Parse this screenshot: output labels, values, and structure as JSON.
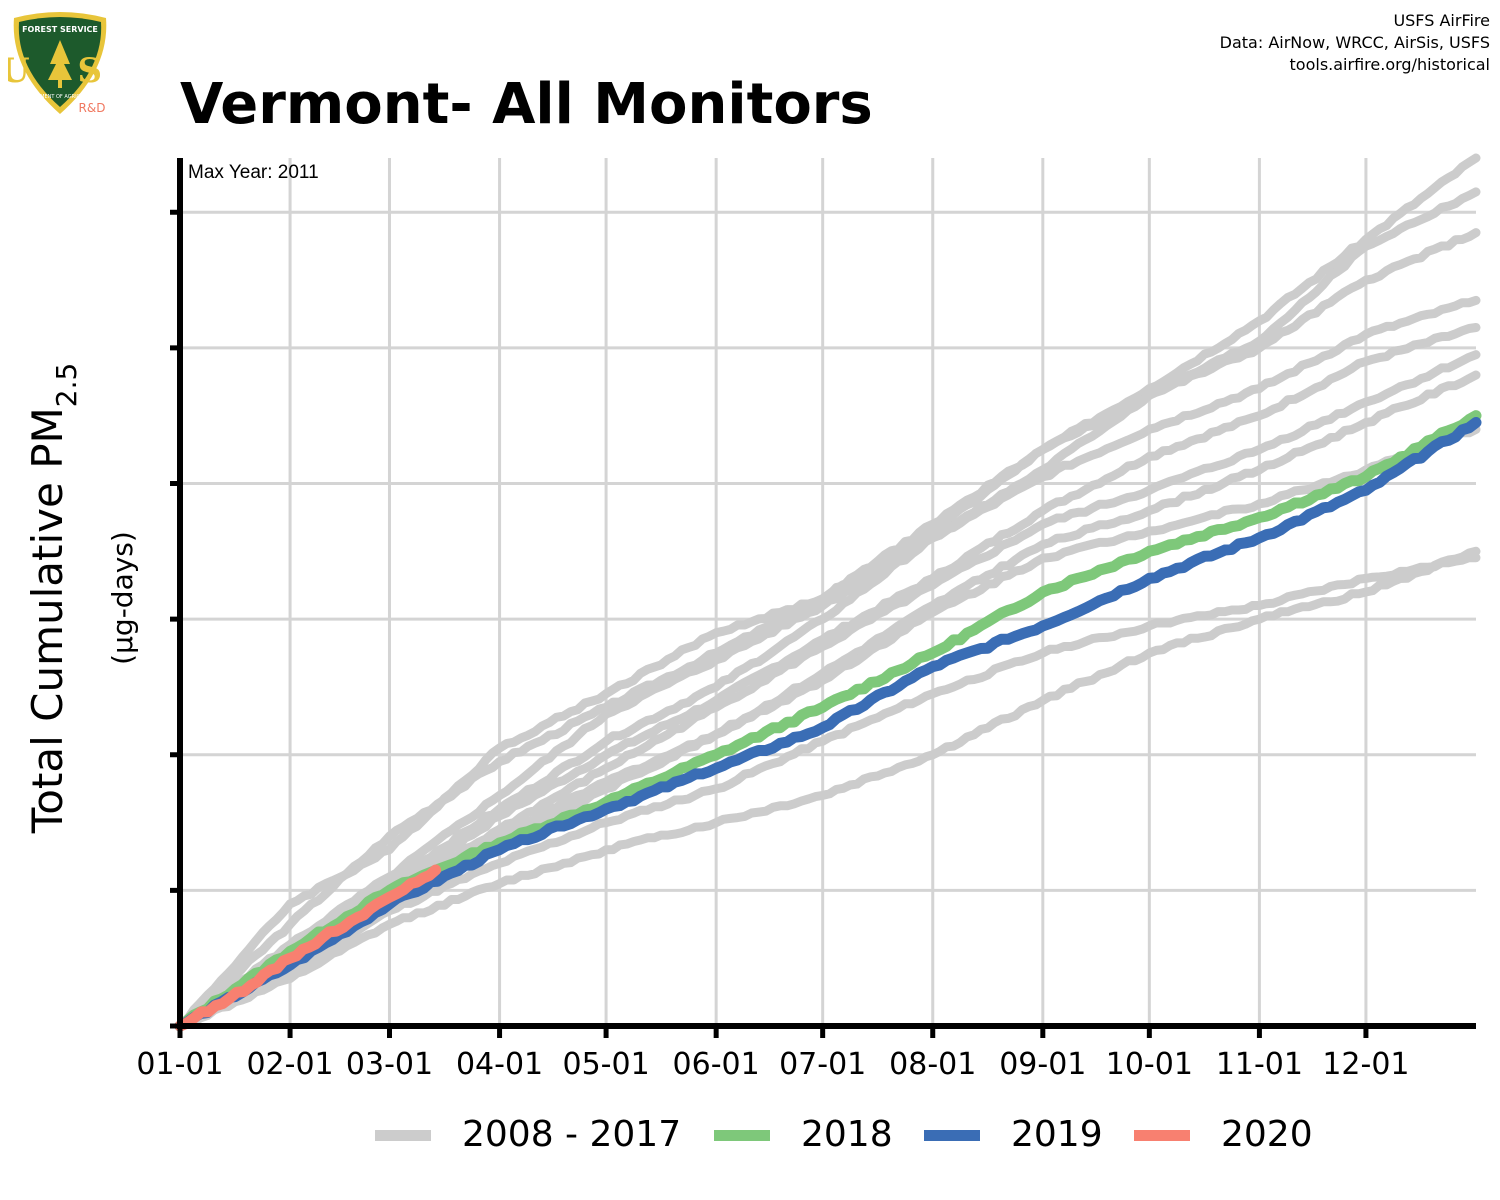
{
  "header": {
    "title": "Vermont- All Monitors",
    "credits": [
      "USFS AirFire",
      "Data: AirNow, WRCC, AirSis, USFS",
      "tools.airfire.org/historical"
    ],
    "logo": {
      "top_text": "FOREST SERVICE",
      "letters": "U S",
      "bottom_text": "DEPARTMENT OF AGRICULTURE",
      "tag": "R&D"
    }
  },
  "chart_data": {
    "type": "line",
    "title": "Vermont- All Monitors",
    "annotation": "Max Year: 2011",
    "ylabel_main": "Total Cumulative PM",
    "ylabel_sub": "2.5",
    "ylabel_units": "(µg-days)",
    "xlabel": "",
    "x_unit": "day of year",
    "x_ticks": [
      {
        "label": "01-01",
        "day": 0
      },
      {
        "label": "02-01",
        "day": 31
      },
      {
        "label": "03-01",
        "day": 59
      },
      {
        "label": "04-01",
        "day": 90
      },
      {
        "label": "05-01",
        "day": 120
      },
      {
        "label": "06-01",
        "day": 151
      },
      {
        "label": "07-01",
        "day": 181
      },
      {
        "label": "08-01",
        "day": 212
      },
      {
        "label": "09-01",
        "day": 243
      },
      {
        "label": "10-01",
        "day": 273
      },
      {
        "label": "11-01",
        "day": 304
      },
      {
        "label": "12-01",
        "day": 334
      }
    ],
    "xlim": [
      0,
      365
    ],
    "ylim": [
      0,
      6.4
    ],
    "y_ticks": [
      0,
      1,
      2,
      3,
      4,
      5,
      6
    ],
    "y_tick_labels_shown": false,
    "grid": true,
    "legend_position": "bottom",
    "colors": {
      "historical": "#cccccc",
      "2018": "#7ec87a",
      "2019": "#3a6db5",
      "2020": "#f88070"
    },
    "legend": [
      {
        "label": "2008 - 2017",
        "color": "#cccccc"
      },
      {
        "label": "2018",
        "color": "#7ec87a"
      },
      {
        "label": "2019",
        "color": "#3a6db5"
      },
      {
        "label": "2020",
        "color": "#f88070"
      }
    ],
    "series": [
      {
        "name": "2008 - 2017",
        "group": "historical",
        "color": "#cccccc",
        "x": [
          0,
          31,
          59,
          90,
          120,
          151,
          181,
          212,
          243,
          273,
          304,
          334,
          365
        ],
        "y": [
          0,
          0.75,
          1.4,
          1.95,
          2.35,
          2.75,
          3.15,
          3.65,
          4.25,
          4.7,
          5.2,
          5.8,
          6.4
        ]
      },
      {
        "name": "2008 - 2017",
        "group": "historical",
        "color": "#cccccc",
        "x": [
          0,
          31,
          59,
          90,
          120,
          151,
          181,
          212,
          243,
          273,
          304,
          334,
          365
        ],
        "y": [
          0,
          0.9,
          1.3,
          2.05,
          2.45,
          2.9,
          3.15,
          3.7,
          4.25,
          4.65,
          5.05,
          5.75,
          6.15
        ]
      },
      {
        "name": "2008 - 2017",
        "group": "historical",
        "color": "#cccccc",
        "x": [
          0,
          31,
          59,
          90,
          120,
          151,
          181,
          212,
          243,
          273,
          304,
          334,
          365
        ],
        "y": [
          0,
          0.6,
          1.1,
          1.7,
          2.3,
          2.7,
          3.1,
          3.6,
          4.1,
          4.65,
          5.0,
          5.5,
          5.85
        ]
      },
      {
        "name": "2008 - 2017",
        "group": "historical",
        "color": "#cccccc",
        "x": [
          0,
          31,
          59,
          90,
          120,
          151,
          181,
          212,
          243,
          273,
          304,
          334,
          365
        ],
        "y": [
          0,
          0.55,
          1.05,
          1.6,
          2.1,
          2.5,
          3.0,
          3.6,
          4.05,
          4.4,
          4.7,
          5.1,
          5.35
        ]
      },
      {
        "name": "2008 - 2017",
        "group": "historical",
        "color": "#cccccc",
        "x": [
          0,
          31,
          59,
          90,
          120,
          151,
          181,
          212,
          243,
          273,
          304,
          334,
          365
        ],
        "y": [
          0,
          0.5,
          1.0,
          1.55,
          2.0,
          2.4,
          2.85,
          3.3,
          3.8,
          4.2,
          4.5,
          4.9,
          5.15
        ]
      },
      {
        "name": "2008 - 2017",
        "group": "historical",
        "color": "#cccccc",
        "x": [
          0,
          31,
          59,
          90,
          120,
          151,
          181,
          212,
          243,
          273,
          304,
          334,
          365
        ],
        "y": [
          0,
          0.5,
          0.95,
          1.45,
          1.9,
          2.35,
          2.8,
          3.25,
          3.7,
          3.95,
          4.25,
          4.6,
          4.95
        ]
      },
      {
        "name": "2008 - 2017",
        "group": "historical",
        "color": "#cccccc",
        "x": [
          0,
          31,
          59,
          90,
          120,
          151,
          181,
          212,
          243,
          273,
          304,
          334,
          365
        ],
        "y": [
          0,
          0.45,
          0.9,
          1.35,
          1.75,
          2.15,
          2.6,
          3.1,
          3.55,
          3.8,
          4.1,
          4.45,
          4.8
        ]
      },
      {
        "name": "2008 - 2017",
        "group": "historical",
        "color": "#cccccc",
        "x": [
          0,
          31,
          59,
          90,
          120,
          151,
          181,
          212,
          243,
          273,
          304,
          334,
          365
        ],
        "y": [
          0,
          0.45,
          0.9,
          1.4,
          1.8,
          2.15,
          2.55,
          3.05,
          3.45,
          3.65,
          3.85,
          4.1,
          4.4
        ]
      },
      {
        "name": "2008 - 2017",
        "group": "historical",
        "color": "#cccccc",
        "x": [
          0,
          31,
          59,
          90,
          120,
          151,
          181,
          212,
          243,
          273,
          304,
          334,
          365
        ],
        "y": [
          0,
          0.4,
          0.85,
          1.2,
          1.5,
          1.75,
          2.1,
          2.45,
          2.75,
          2.95,
          3.1,
          3.3,
          3.45
        ]
      },
      {
        "name": "2008 - 2017",
        "group": "historical",
        "color": "#cccccc",
        "x": [
          0,
          31,
          59,
          90,
          120,
          151,
          181,
          212,
          243,
          273,
          304,
          334,
          365
        ],
        "y": [
          0,
          0.35,
          0.75,
          1.05,
          1.3,
          1.5,
          1.7,
          2.0,
          2.4,
          2.75,
          3.0,
          3.2,
          3.5
        ]
      },
      {
        "name": "2018",
        "color": "#7ec87a",
        "x": [
          0,
          31,
          59,
          90,
          120,
          151,
          181,
          212,
          243,
          273,
          304,
          334,
          365
        ],
        "y": [
          0,
          0.55,
          1.0,
          1.35,
          1.65,
          2.0,
          2.35,
          2.75,
          3.2,
          3.5,
          3.75,
          4.05,
          4.5
        ]
      },
      {
        "name": "2019",
        "color": "#3a6db5",
        "x": [
          0,
          31,
          59,
          90,
          120,
          151,
          181,
          212,
          243,
          273,
          304,
          334,
          365
        ],
        "y": [
          0,
          0.45,
          0.9,
          1.3,
          1.6,
          1.9,
          2.2,
          2.65,
          2.95,
          3.3,
          3.6,
          3.95,
          4.45
        ]
      },
      {
        "name": "2020",
        "color": "#f88070",
        "x": [
          0,
          10,
          20,
          31,
          40,
          50,
          59,
          65,
          72
        ],
        "y": [
          0,
          0.15,
          0.3,
          0.5,
          0.65,
          0.8,
          0.95,
          1.05,
          1.15
        ]
      }
    ]
  }
}
